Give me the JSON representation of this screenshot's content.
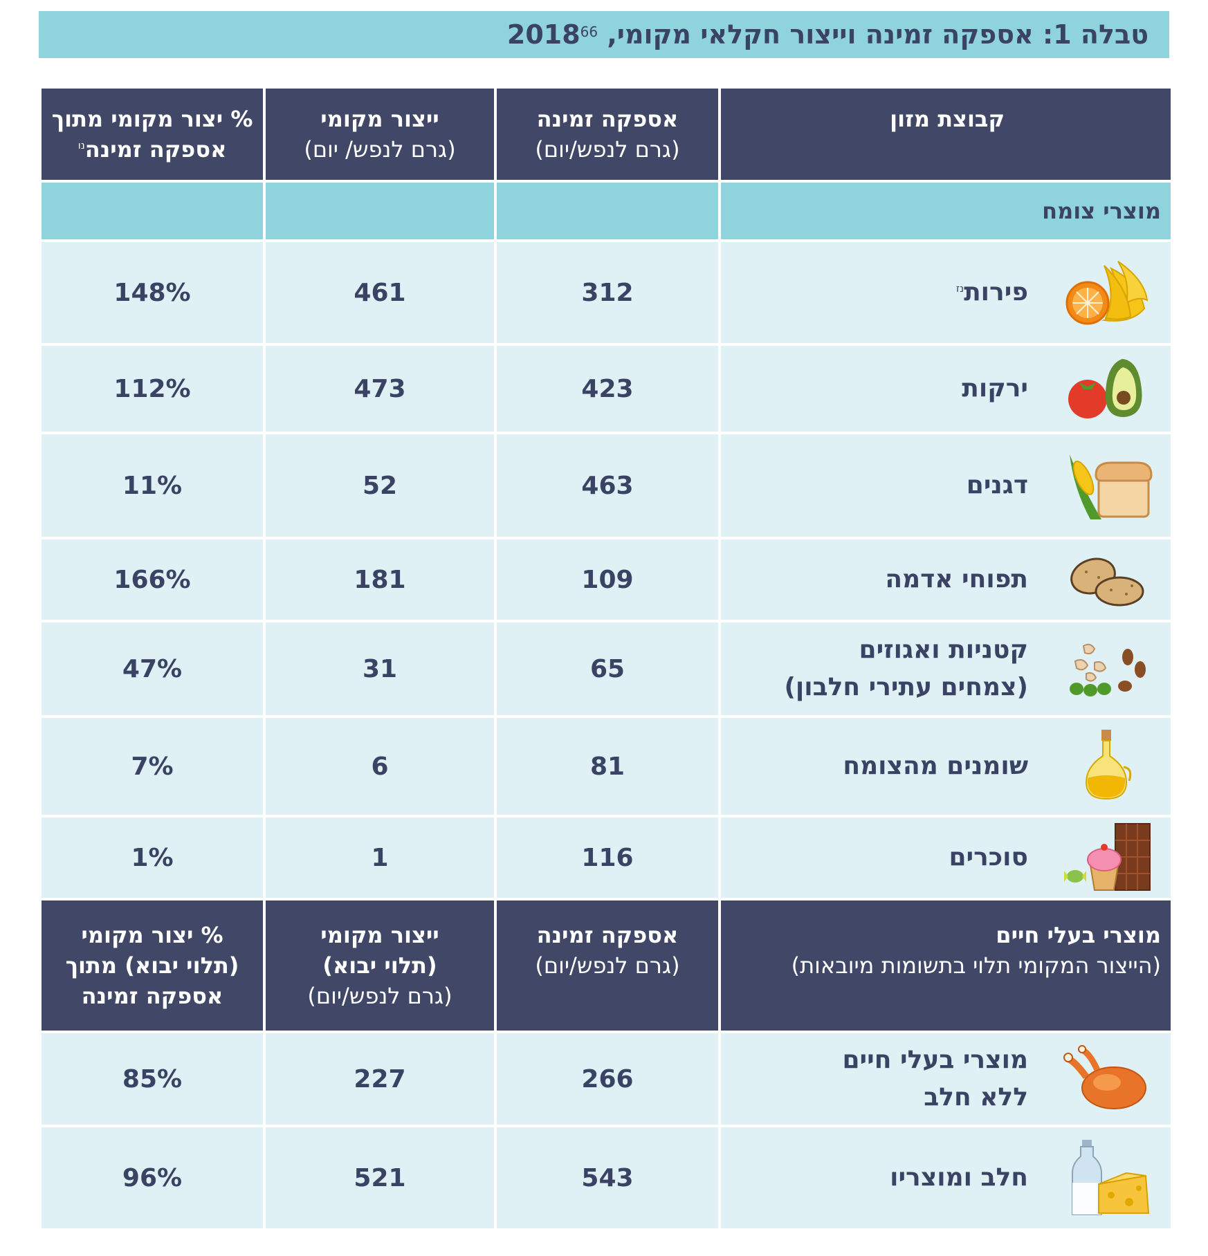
{
  "title": {
    "text": "טבלה 1: אספקה זמינה וייצור חקלאי מקומי, 2018",
    "ref": "66"
  },
  "header1": {
    "food_group": "קבוצת מזון",
    "supply": "אספקה זמינה",
    "supply_unit": "(גרם לנפש/יום)",
    "production": "ייצור מקומי",
    "production_unit": "(גרם לנפש/ יום)",
    "percent_line1": "% יצור מקומי מתוך",
    "percent_line2": "אספקה זמינה",
    "percent_note": "נו"
  },
  "section_plant": "מוצרי צומח",
  "plant_rows": [
    {
      "name": "פירות",
      "note": "נז",
      "supply": "312",
      "production": "461",
      "percent": "148%",
      "icon": "fruit-icon"
    },
    {
      "name": "ירקות",
      "supply": "423",
      "production": "473",
      "percent": "112%",
      "icon": "vegetables-icon"
    },
    {
      "name": "דגנים",
      "supply": "463",
      "production": "52",
      "percent": "11%",
      "icon": "grains-icon"
    },
    {
      "name": "תפוחי אדמה",
      "supply": "109",
      "production": "181",
      "percent": "166%",
      "icon": "potato-icon"
    },
    {
      "name": "קטניות ואגוזים",
      "name2": "(צמחים עתירי חלבון)",
      "supply": "65",
      "production": "31",
      "percent": "47%",
      "icon": "nuts-legumes-icon"
    },
    {
      "name": "שומנים מהצומח",
      "supply": "81",
      "production": "6",
      "percent": "7%",
      "icon": "oil-bottle-icon"
    },
    {
      "name": "סוכרים",
      "supply": "116",
      "production": "1",
      "percent": "1%",
      "icon": "sweets-icon"
    }
  ],
  "header2": {
    "group": "מוצרי בעלי חיים",
    "group_sub": "(הייצור המקומי תלוי בתשומות מיובאות)",
    "supply": "אספקה זמינה",
    "supply_unit": "(גרם לנפש/יום)",
    "production_line1": "ייצור מקומי",
    "production_line2": "(תלוי יבוא)",
    "production_unit": "(גרם לנפש/יום)",
    "percent_line1": "% יצור מקומי",
    "percent_line2": "(תלוי יבוא) מתוך",
    "percent_line3": "אספקה זמינה"
  },
  "animal_rows": [
    {
      "name": "מוצרי בעלי חיים",
      "name2": "ללא חלב",
      "supply": "266",
      "production": "227",
      "percent": "85%",
      "icon": "roast-chicken-icon"
    },
    {
      "name": "חלב ומוצריו",
      "supply": "543",
      "production": "521",
      "percent": "96%",
      "icon": "milk-cheese-icon"
    }
  ]
}
